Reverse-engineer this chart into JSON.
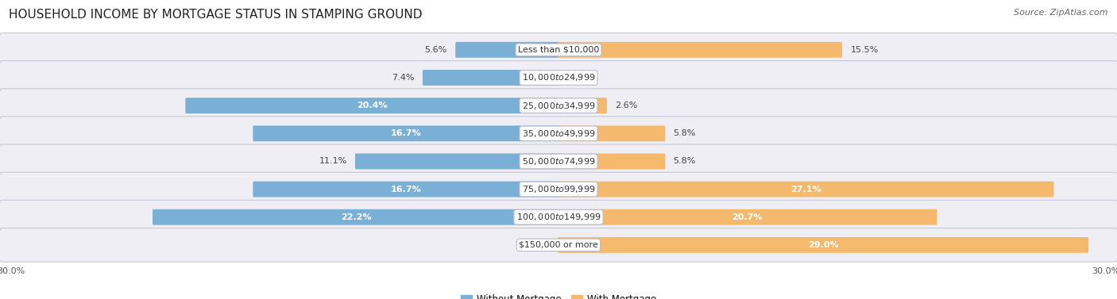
{
  "title": "HOUSEHOLD INCOME BY MORTGAGE STATUS IN STAMPING GROUND",
  "source": "Source: ZipAtlas.com",
  "categories": [
    "Less than $10,000",
    "$10,000 to $24,999",
    "$25,000 to $34,999",
    "$35,000 to $49,999",
    "$50,000 to $74,999",
    "$75,000 to $99,999",
    "$100,000 to $149,999",
    "$150,000 or more"
  ],
  "without_mortgage": [
    5.6,
    7.4,
    20.4,
    16.7,
    11.1,
    16.7,
    22.2,
    0.0
  ],
  "with_mortgage": [
    15.5,
    0.0,
    2.6,
    5.8,
    5.8,
    27.1,
    20.7,
    29.0
  ],
  "color_without": "#7aafd6",
  "color_with": "#f5b96e",
  "color_without_light": "#b8d4ea",
  "color_with_light": "#fad9b0",
  "axis_max": 30.0,
  "bg_color": "#ffffff",
  "row_bg_odd": "#ededf2",
  "row_bg_even": "#e4e4eb",
  "title_fontsize": 11,
  "source_fontsize": 8,
  "label_fontsize": 8,
  "category_fontsize": 8,
  "legend_fontsize": 8.5,
  "axis_label_fontsize": 8,
  "label_inside_threshold": 15.0,
  "label_inside_threshold_wm": 20.0
}
